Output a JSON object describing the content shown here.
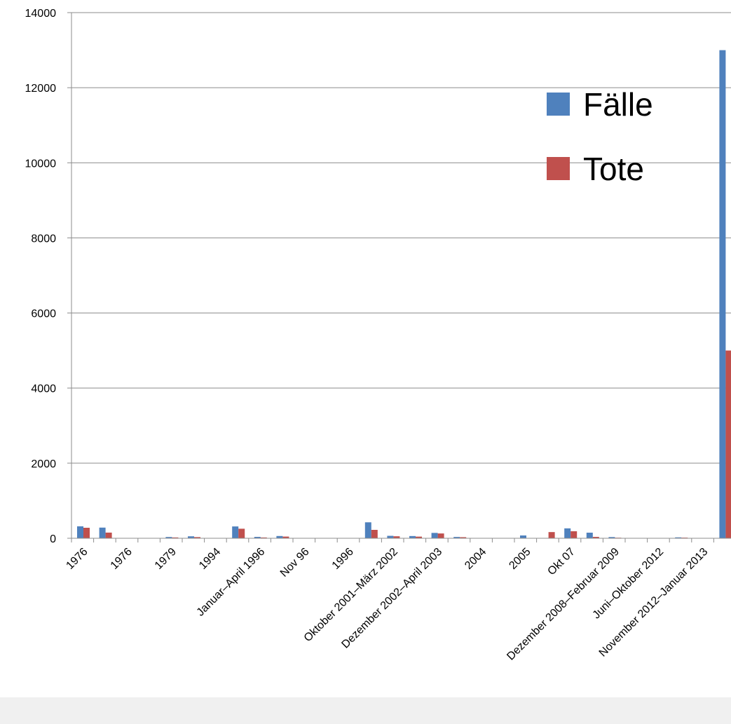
{
  "chart_data": {
    "type": "bar",
    "title": "",
    "xlabel": "",
    "ylabel": "",
    "ylim": [
      0,
      14000
    ],
    "yticks": [
      0,
      2000,
      4000,
      6000,
      8000,
      10000,
      12000,
      14000
    ],
    "grid": true,
    "legend_position": "top-right",
    "categories": [
      "1976",
      "",
      "1976",
      "",
      "1979",
      "",
      "1994",
      "",
      "Januar–April 1996",
      "",
      "Nov 96",
      "",
      "1996",
      "",
      "Oktober 2001–März 2002",
      "",
      "Dezember 2002–April 2003",
      "",
      "2004",
      "",
      "2005",
      "",
      "Okt 07",
      "",
      "Dezember 2008–Februar 2009",
      "",
      "Juni–Oktober 2012",
      "",
      "November 2012–Januar 2013",
      ""
    ],
    "series": [
      {
        "name": "Fälle",
        "color": "#4f81bd",
        "values": [
          318,
          284,
          0,
          0,
          34,
          52,
          0,
          315,
          37,
          60,
          0,
          0,
          0,
          425,
          65,
          59,
          143,
          35,
          0,
          0,
          75,
          0,
          264,
          149,
          32,
          0,
          0,
          24,
          0,
          13000
        ]
      },
      {
        "name": "Tote",
        "color": "#c0504d",
        "values": [
          280,
          151,
          0,
          0,
          22,
          31,
          0,
          254,
          21,
          45,
          0,
          0,
          0,
          224,
          53,
          44,
          128,
          29,
          0,
          0,
          0,
          165,
          187,
          37,
          15,
          0,
          0,
          17,
          0,
          5000
        ]
      }
    ]
  }
}
